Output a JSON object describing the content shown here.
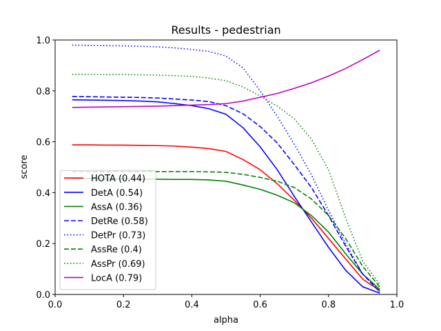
{
  "chart_data": {
    "type": "line",
    "title": "Results - pedestrian",
    "xlabel": "alpha",
    "ylabel": "score",
    "x": [
      0.05,
      0.1,
      0.15,
      0.2,
      0.25,
      0.3,
      0.35,
      0.4,
      0.45,
      0.5,
      0.55,
      0.6,
      0.65,
      0.7,
      0.75,
      0.8,
      0.85,
      0.9,
      0.95
    ],
    "series": [
      {
        "name": "HOTA (0.44)",
        "color": "#ff0000",
        "dash": "solid",
        "values": [
          0.588,
          0.588,
          0.587,
          0.587,
          0.586,
          0.585,
          0.583,
          0.579,
          0.573,
          0.562,
          0.53,
          0.49,
          0.435,
          0.37,
          0.3,
          0.22,
          0.14,
          0.06,
          0.015
        ]
      },
      {
        "name": "DetA (0.54)",
        "color": "#0000ff",
        "dash": "solid",
        "values": [
          0.765,
          0.764,
          0.763,
          0.762,
          0.76,
          0.757,
          0.75,
          0.742,
          0.73,
          0.708,
          0.655,
          0.58,
          0.49,
          0.385,
          0.285,
          0.185,
          0.095,
          0.03,
          0.005
        ]
      },
      {
        "name": "AssA (0.36)",
        "color": "#008000",
        "dash": "solid",
        "values": [
          0.455,
          0.455,
          0.454,
          0.454,
          0.453,
          0.453,
          0.452,
          0.452,
          0.45,
          0.445,
          0.43,
          0.413,
          0.39,
          0.36,
          0.31,
          0.245,
          0.16,
          0.08,
          0.02
        ]
      },
      {
        "name": "DetRe (0.58)",
        "color": "#0000ff",
        "dash": "dashed",
        "values": [
          0.778,
          0.777,
          0.776,
          0.775,
          0.774,
          0.772,
          0.768,
          0.764,
          0.758,
          0.742,
          0.71,
          0.66,
          0.595,
          0.51,
          0.42,
          0.31,
          0.19,
          0.08,
          0.01
        ]
      },
      {
        "name": "DetPr (0.73)",
        "color": "#0000ff",
        "dash": "dotted",
        "values": [
          0.98,
          0.979,
          0.978,
          0.977,
          0.975,
          0.973,
          0.969,
          0.963,
          0.955,
          0.937,
          0.89,
          0.8,
          0.7,
          0.59,
          0.47,
          0.33,
          0.2,
          0.08,
          0.01
        ]
      },
      {
        "name": "AssRe (0.4)",
        "color": "#008000",
        "dash": "dashed",
        "values": [
          0.483,
          0.483,
          0.483,
          0.483,
          0.483,
          0.483,
          0.483,
          0.483,
          0.482,
          0.48,
          0.472,
          0.46,
          0.445,
          0.42,
          0.375,
          0.31,
          0.22,
          0.11,
          0.03
        ]
      },
      {
        "name": "AssPr (0.69)",
        "color": "#008000",
        "dash": "dotted",
        "values": [
          0.865,
          0.865,
          0.864,
          0.864,
          0.863,
          0.862,
          0.86,
          0.857,
          0.85,
          0.84,
          0.815,
          0.78,
          0.74,
          0.69,
          0.61,
          0.49,
          0.3,
          0.13,
          0.04
        ]
      },
      {
        "name": "LocA (0.79)",
        "color": "#bf00bf",
        "dash": "solid",
        "values": [
          0.735,
          0.736,
          0.737,
          0.738,
          0.739,
          0.74,
          0.742,
          0.744,
          0.746,
          0.75,
          0.76,
          0.775,
          0.79,
          0.81,
          0.832,
          0.858,
          0.888,
          0.923,
          0.96
        ]
      }
    ],
    "xlim": [
      0,
      1
    ],
    "ylim": [
      0,
      1
    ],
    "xticks": [
      {
        "value": 0,
        "label": "0.0"
      },
      0.2,
      0.4,
      0.6,
      0.8,
      {
        "value": 1,
        "label": "1.0"
      }
    ],
    "yticks": [
      {
        "value": 0,
        "label": "0.0"
      },
      0.2,
      0.4,
      0.6,
      0.8,
      {
        "value": 1,
        "label": "1.0"
      }
    ],
    "grid": false,
    "legend": "lower left"
  }
}
